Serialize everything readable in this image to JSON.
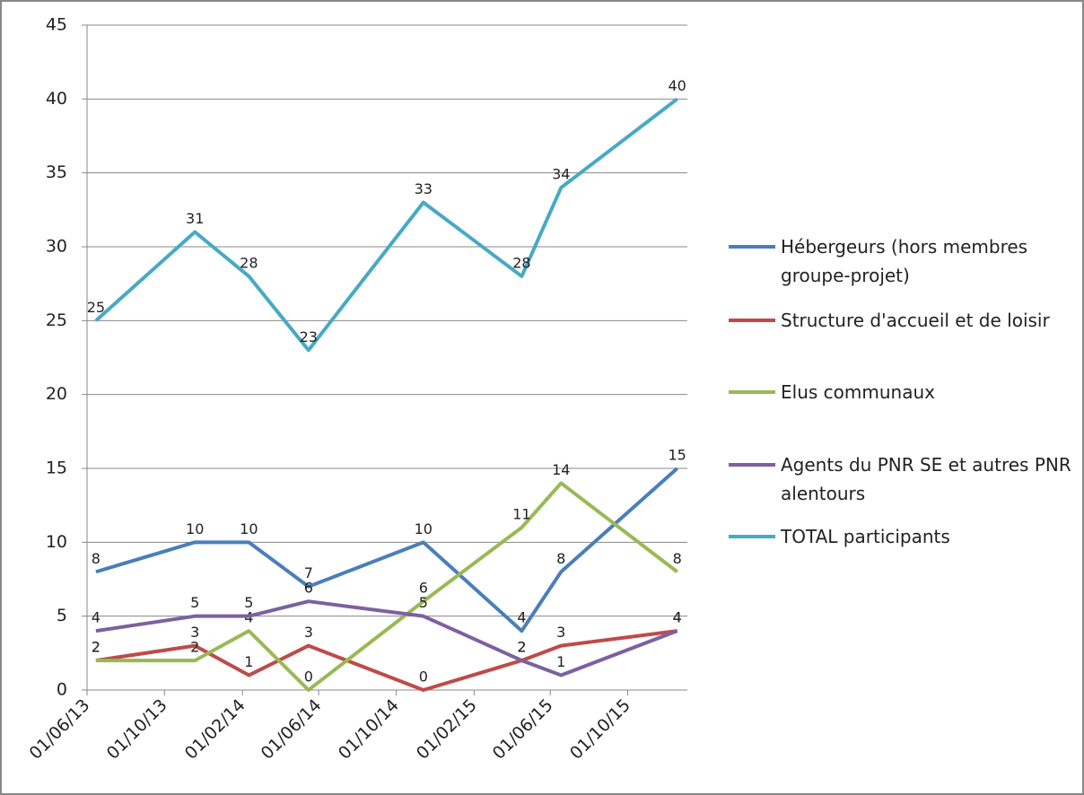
{
  "chart_data": {
    "type": "line",
    "x": [
      "15/06/13",
      "18/11/13",
      "11/02/14",
      "16/05/14",
      "13/11/14",
      "17/04/15",
      "18/06/15",
      "18/12/15"
    ],
    "xlim": [
      "01/06/13",
      "03/01/16"
    ],
    "xticks": [
      "01/06/13",
      "01/10/13",
      "01/02/14",
      "01/06/14",
      "01/10/14",
      "01/02/15",
      "01/06/15",
      "01/10/15"
    ],
    "ylim": [
      0,
      45
    ],
    "yticks": [
      0,
      5,
      10,
      15,
      20,
      25,
      30,
      35,
      40,
      45
    ],
    "grid": true,
    "legend": "right",
    "series": [
      {
        "name": "Hébergeurs (hors membres groupe-projet)",
        "color": "#4a7ebb",
        "values": [
          8,
          10,
          10,
          7,
          10,
          4,
          8,
          15
        ]
      },
      {
        "name": "Structure d'accueil et de loisir",
        "color": "#be4b48",
        "values": [
          2,
          3,
          1,
          3,
          0,
          2,
          3,
          4
        ]
      },
      {
        "name": "Elus communaux",
        "color": "#98b954",
        "values": [
          2,
          2,
          4,
          0,
          6,
          11,
          14,
          8
        ]
      },
      {
        "name": "Agents du PNR SE et autres PNR alentours",
        "color": "#7d60a0",
        "values": [
          4,
          5,
          5,
          6,
          5,
          2,
          1,
          4
        ]
      },
      {
        "name": "TOTAL participants",
        "color": "#46aac5",
        "values": [
          25,
          31,
          28,
          23,
          33,
          28,
          34,
          40
        ]
      }
    ]
  }
}
